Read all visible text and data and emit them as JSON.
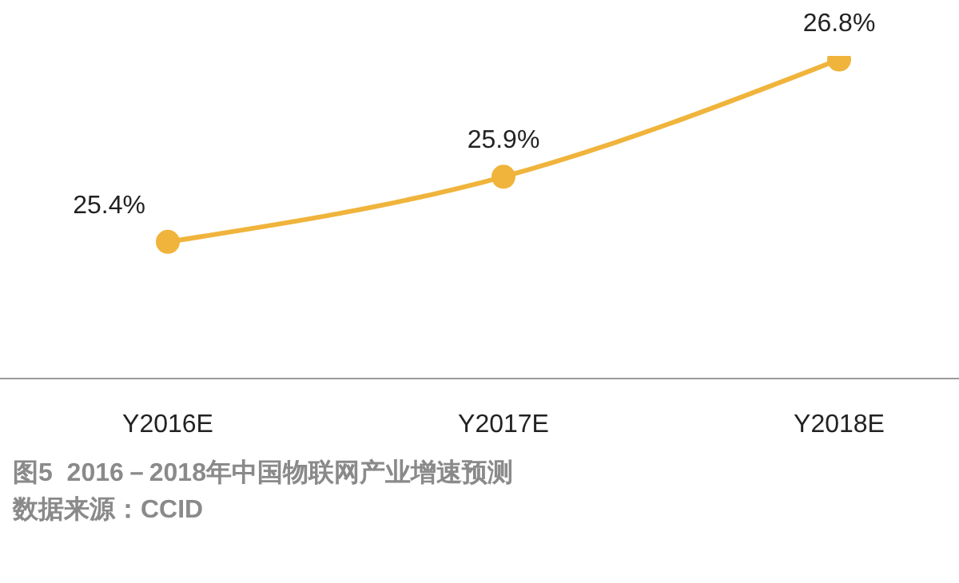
{
  "chart_data": {
    "type": "line",
    "categories": [
      "Y2016E",
      "Y2017E",
      "Y2018E"
    ],
    "series": [
      {
        "color": "#f0b43c",
        "values": [
          25.4,
          25.9,
          26.8
        ],
        "value_labels": [
          "25.4%",
          "25.9%",
          "26.8%"
        ]
      }
    ],
    "marker": "circle",
    "line_style": "solid",
    "annotations": [
      "图5  2016－2018年中国物联网产业增速预测",
      "数据来源：CCID"
    ]
  }
}
